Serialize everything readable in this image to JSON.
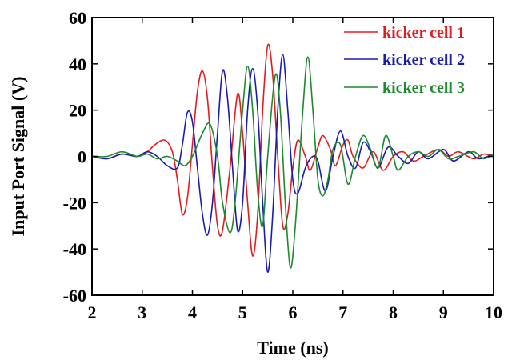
{
  "chart_data": {
    "type": "line",
    "xlabel": "Time (ns)",
    "ylabel": "Input Port Signal (V)",
    "xlim": [
      2,
      10
    ],
    "ylim": [
      -60,
      60
    ],
    "xticks": [
      2,
      3,
      4,
      5,
      6,
      7,
      8,
      9,
      10
    ],
    "yticks": [
      -60,
      -40,
      -20,
      0,
      20,
      40,
      60
    ],
    "grid": false,
    "legend_position": "top-right",
    "series": [
      {
        "name": "kicker cell 1",
        "color": "#e8191e",
        "points": [
          [
            2.0,
            0
          ],
          [
            2.3,
            -1
          ],
          [
            2.6,
            1
          ],
          [
            2.9,
            0
          ],
          [
            3.1,
            2
          ],
          [
            3.25,
            5
          ],
          [
            3.45,
            7
          ],
          [
            3.6,
            2
          ],
          [
            3.7,
            -10
          ],
          [
            3.8,
            -25
          ],
          [
            3.9,
            -18
          ],
          [
            4.0,
            5
          ],
          [
            4.1,
            28
          ],
          [
            4.2,
            37
          ],
          [
            4.3,
            25
          ],
          [
            4.4,
            -5
          ],
          [
            4.5,
            -30
          ],
          [
            4.6,
            -32
          ],
          [
            4.75,
            -5
          ],
          [
            4.9,
            27
          ],
          [
            5.0,
            10
          ],
          [
            5.1,
            -20
          ],
          [
            5.2,
            -43
          ],
          [
            5.3,
            -25
          ],
          [
            5.4,
            20
          ],
          [
            5.5,
            48
          ],
          [
            5.6,
            35
          ],
          [
            5.7,
            0
          ],
          [
            5.8,
            -30
          ],
          [
            5.9,
            -25
          ],
          [
            6.0,
            -5
          ],
          [
            6.1,
            7
          ],
          [
            6.25,
            0
          ],
          [
            6.35,
            -6
          ],
          [
            6.5,
            4
          ],
          [
            6.6,
            9
          ],
          [
            6.75,
            3
          ],
          [
            6.85,
            -4
          ],
          [
            7.0,
            5
          ],
          [
            7.1,
            7
          ],
          [
            7.2,
            0
          ],
          [
            7.4,
            -5
          ],
          [
            7.6,
            2
          ],
          [
            7.8,
            -6
          ],
          [
            8.0,
            0
          ],
          [
            8.2,
            2
          ],
          [
            8.4,
            -2
          ],
          [
            8.6,
            0
          ],
          [
            8.9,
            3
          ],
          [
            9.1,
            0
          ],
          [
            9.3,
            2
          ],
          [
            9.6,
            -1
          ],
          [
            9.8,
            1
          ],
          [
            10.0,
            0
          ]
        ]
      },
      {
        "name": "kicker cell 2",
        "color": "#1a1ab4",
        "points": [
          [
            2.0,
            0
          ],
          [
            2.3,
            -1
          ],
          [
            2.6,
            1
          ],
          [
            2.9,
            0
          ],
          [
            3.1,
            2
          ],
          [
            3.3,
            0
          ],
          [
            3.5,
            -4
          ],
          [
            3.7,
            -5
          ],
          [
            3.8,
            5
          ],
          [
            3.9,
            19
          ],
          [
            4.0,
            15
          ],
          [
            4.1,
            -5
          ],
          [
            4.2,
            -25
          ],
          [
            4.3,
            -34
          ],
          [
            4.4,
            -20
          ],
          [
            4.5,
            10
          ],
          [
            4.6,
            37
          ],
          [
            4.7,
            25
          ],
          [
            4.8,
            -5
          ],
          [
            4.9,
            -32
          ],
          [
            5.0,
            -20
          ],
          [
            5.1,
            20
          ],
          [
            5.2,
            38
          ],
          [
            5.3,
            20
          ],
          [
            5.4,
            -20
          ],
          [
            5.5,
            -50
          ],
          [
            5.6,
            -25
          ],
          [
            5.7,
            20
          ],
          [
            5.8,
            44
          ],
          [
            5.9,
            20
          ],
          [
            6.0,
            -10
          ],
          [
            6.1,
            -16
          ],
          [
            6.25,
            -5
          ],
          [
            6.4,
            0
          ],
          [
            6.5,
            -2
          ],
          [
            6.65,
            -15
          ],
          [
            6.8,
            0
          ],
          [
            6.95,
            11
          ],
          [
            7.1,
            0
          ],
          [
            7.25,
            -5
          ],
          [
            7.4,
            6
          ],
          [
            7.55,
            2
          ],
          [
            7.7,
            -5
          ],
          [
            7.9,
            4
          ],
          [
            8.1,
            0
          ],
          [
            8.3,
            -3
          ],
          [
            8.5,
            2
          ],
          [
            8.7,
            -1
          ],
          [
            9.0,
            3
          ],
          [
            9.2,
            -2
          ],
          [
            9.5,
            2
          ],
          [
            9.7,
            -1
          ],
          [
            10.0,
            1
          ]
        ]
      },
      {
        "name": "kicker cell 3",
        "color": "#1a8a2a",
        "points": [
          [
            2.0,
            0
          ],
          [
            2.3,
            0
          ],
          [
            2.6,
            2
          ],
          [
            2.9,
            0
          ],
          [
            3.1,
            1
          ],
          [
            3.3,
            -1
          ],
          [
            3.5,
            0
          ],
          [
            3.7,
            -2
          ],
          [
            3.85,
            -4
          ],
          [
            4.0,
            0
          ],
          [
            4.2,
            10
          ],
          [
            4.35,
            14
          ],
          [
            4.5,
            0
          ],
          [
            4.6,
            -20
          ],
          [
            4.75,
            -33
          ],
          [
            4.85,
            -20
          ],
          [
            5.0,
            20
          ],
          [
            5.1,
            39
          ],
          [
            5.2,
            20
          ],
          [
            5.3,
            -15
          ],
          [
            5.4,
            -30
          ],
          [
            5.5,
            0
          ],
          [
            5.65,
            35
          ],
          [
            5.75,
            20
          ],
          [
            5.85,
            -20
          ],
          [
            5.95,
            -48
          ],
          [
            6.05,
            -30
          ],
          [
            6.2,
            20
          ],
          [
            6.3,
            43
          ],
          [
            6.4,
            20
          ],
          [
            6.5,
            -10
          ],
          [
            6.6,
            -17
          ],
          [
            6.7,
            -10
          ],
          [
            6.8,
            3
          ],
          [
            6.95,
            5
          ],
          [
            7.1,
            -12
          ],
          [
            7.25,
            0
          ],
          [
            7.4,
            9
          ],
          [
            7.55,
            3
          ],
          [
            7.7,
            -5
          ],
          [
            7.85,
            9
          ],
          [
            8.0,
            0
          ],
          [
            8.1,
            -6
          ],
          [
            8.3,
            0
          ],
          [
            8.5,
            2
          ],
          [
            8.7,
            0
          ],
          [
            8.9,
            3
          ],
          [
            9.1,
            -1
          ],
          [
            9.3,
            0
          ],
          [
            9.6,
            2
          ],
          [
            9.8,
            -1
          ],
          [
            10.0,
            1
          ]
        ]
      }
    ]
  }
}
